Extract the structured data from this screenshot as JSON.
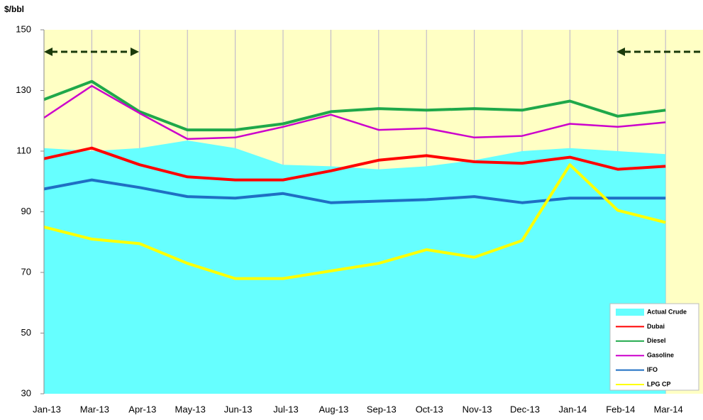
{
  "chart_data": {
    "type": "line",
    "ylabel": "$/bbl",
    "categories": [
      "Jan-13",
      "Mar-13",
      "Apr-13",
      "May-13",
      "Jun-13",
      "Jul-13",
      "Aug-13",
      "Sep-13",
      "Oct-13",
      "Nov-13",
      "Dec-13",
      "Jan-14",
      "Feb-14",
      "Mar-14"
    ],
    "ylim": [
      30,
      150
    ],
    "yticks": [
      30,
      50,
      70,
      90,
      110,
      130,
      150
    ],
    "series": [
      {
        "name": "Actual Crude",
        "type": "area",
        "color": "#66ffff",
        "values": [
          111,
          110,
          111,
          113.5,
          111,
          105.5,
          105,
          104,
          105,
          107,
          110,
          111,
          110,
          109
        ]
      },
      {
        "name": "Dubai",
        "color": "#ff0000",
        "values": [
          107.5,
          111,
          105.5,
          101.5,
          100.5,
          100.5,
          103.5,
          107,
          108.5,
          106.5,
          106,
          108,
          104,
          105
        ]
      },
      {
        "name": "Diesel",
        "color": "#1fa84a",
        "values": [
          127,
          133,
          123,
          117,
          117,
          119,
          123,
          124,
          123.5,
          124,
          123.5,
          126.5,
          121.5,
          123.5
        ]
      },
      {
        "name": "Gasoline",
        "color": "#cc00cc",
        "values": [
          121,
          131.5,
          122.5,
          114,
          114.5,
          118,
          122,
          117,
          117.5,
          114.5,
          115,
          119,
          118,
          119.5
        ]
      },
      {
        "name": "IFO",
        "color": "#1f6fc4",
        "values": [
          97.5,
          100.5,
          98,
          95,
          94.5,
          96,
          93,
          93.5,
          94,
          95,
          93,
          94.5,
          94.5,
          94.5
        ]
      },
      {
        "name": "LPG CP",
        "color": "#ffff00",
        "values": [
          85,
          81,
          79.5,
          73,
          68,
          68,
          70.5,
          73,
          77.5,
          75,
          80.5,
          105.5,
          90.5,
          86.5
        ]
      }
    ]
  }
}
